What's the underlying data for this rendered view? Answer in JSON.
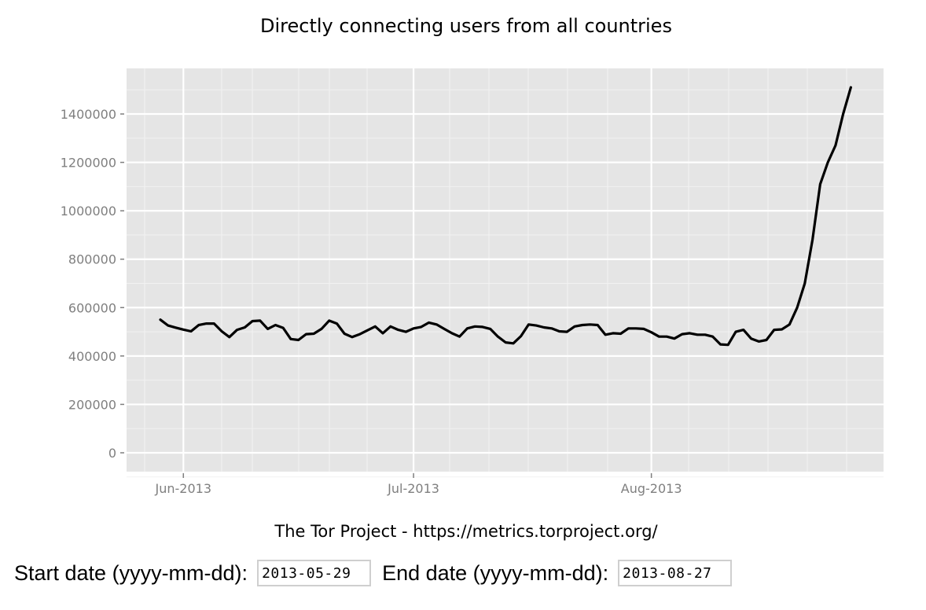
{
  "chart": {
    "title": "Directly connecting users from all countries",
    "caption": "The Tor Project - https://metrics.torproject.org/",
    "y_ticks": [
      "0",
      "200000",
      "400000",
      "600000",
      "800000",
      "1000000",
      "1200000",
      "1400000"
    ],
    "x_ticks": [
      "Jun-2013",
      "Jul-2013",
      "Aug-2013"
    ]
  },
  "form": {
    "start_label": "Start date (yyyy-mm-dd):",
    "start_value": "2013-05-29",
    "end_label": "End date (yyyy-mm-dd):",
    "end_value": "2013-08-27"
  },
  "colors": {
    "panel_bg": "#e5e5e5",
    "grid_major": "#ffffff",
    "grid_minor": "#f2f2f2",
    "line": "#000000",
    "tick_text": "#7f7f7f"
  },
  "chart_data": {
    "type": "line",
    "title": "Directly connecting users from all countries",
    "xlabel": "",
    "ylabel": "",
    "caption": "The Tor Project - https://metrics.torproject.org/",
    "x_start": "2013-05-29",
    "x_end": "2013-08-27",
    "x_tick_labels": [
      "Jun-2013",
      "Jul-2013",
      "Aug-2013"
    ],
    "y_tick_labels": [
      "0",
      "200000",
      "400000",
      "600000",
      "800000",
      "1000000",
      "1200000",
      "1400000"
    ],
    "ylim": [
      -70000,
      1570000
    ],
    "grid": true,
    "legend": "none",
    "series": [
      {
        "name": "Directly connecting users",
        "x": [
          "2013-05-29",
          "2013-05-30",
          "2013-05-31",
          "2013-06-01",
          "2013-06-02",
          "2013-06-03",
          "2013-06-04",
          "2013-06-05",
          "2013-06-06",
          "2013-06-07",
          "2013-06-08",
          "2013-06-09",
          "2013-06-10",
          "2013-06-11",
          "2013-06-12",
          "2013-06-13",
          "2013-06-14",
          "2013-06-15",
          "2013-06-16",
          "2013-06-17",
          "2013-06-18",
          "2013-06-19",
          "2013-06-20",
          "2013-06-21",
          "2013-06-22",
          "2013-06-23",
          "2013-06-24",
          "2013-06-25",
          "2013-06-26",
          "2013-06-27",
          "2013-06-28",
          "2013-06-29",
          "2013-06-30",
          "2013-07-01",
          "2013-07-02",
          "2013-07-03",
          "2013-07-04",
          "2013-07-05",
          "2013-07-06",
          "2013-07-07",
          "2013-07-08",
          "2013-07-09",
          "2013-07-10",
          "2013-07-11",
          "2013-07-12",
          "2013-07-13",
          "2013-07-14",
          "2013-07-15",
          "2013-07-16",
          "2013-07-17",
          "2013-07-18",
          "2013-07-19",
          "2013-07-20",
          "2013-07-21",
          "2013-07-22",
          "2013-07-23",
          "2013-07-24",
          "2013-07-25",
          "2013-07-26",
          "2013-07-27",
          "2013-07-28",
          "2013-07-29",
          "2013-07-30",
          "2013-07-31",
          "2013-08-01",
          "2013-08-02",
          "2013-08-03",
          "2013-08-04",
          "2013-08-05",
          "2013-08-06",
          "2013-08-07",
          "2013-08-08",
          "2013-08-09",
          "2013-08-10",
          "2013-08-11",
          "2013-08-12",
          "2013-08-13",
          "2013-08-14",
          "2013-08-15",
          "2013-08-16",
          "2013-08-17",
          "2013-08-18",
          "2013-08-19",
          "2013-08-20",
          "2013-08-21",
          "2013-08-22",
          "2013-08-23",
          "2013-08-24",
          "2013-08-25",
          "2013-08-26",
          "2013-08-27"
        ],
        "values": [
          550000,
          526000,
          517000,
          509000,
          502000,
          528000,
          534000,
          534000,
          502000,
          478000,
          508000,
          518000,
          544000,
          546000,
          512000,
          528000,
          516000,
          470000,
          466000,
          490000,
          492000,
          512000,
          546000,
          534000,
          492000,
          478000,
          490000,
          506000,
          522000,
          494000,
          522000,
          508000,
          500000,
          514000,
          520000,
          538000,
          530000,
          512000,
          494000,
          480000,
          514000,
          522000,
          520000,
          512000,
          480000,
          456000,
          452000,
          482000,
          530000,
          526000,
          518000,
          514000,
          502000,
          500000,
          522000,
          528000,
          530000,
          528000,
          488000,
          494000,
          492000,
          514000,
          514000,
          512000,
          498000,
          480000,
          480000,
          472000,
          490000,
          494000,
          488000,
          488000,
          480000,
          448000,
          446000,
          500000,
          508000,
          472000,
          460000,
          466000,
          508000,
          510000,
          530000,
          600000,
          700000,
          880000,
          1110000,
          1200000,
          1270000,
          1400000,
          1510000
        ]
      }
    ]
  }
}
